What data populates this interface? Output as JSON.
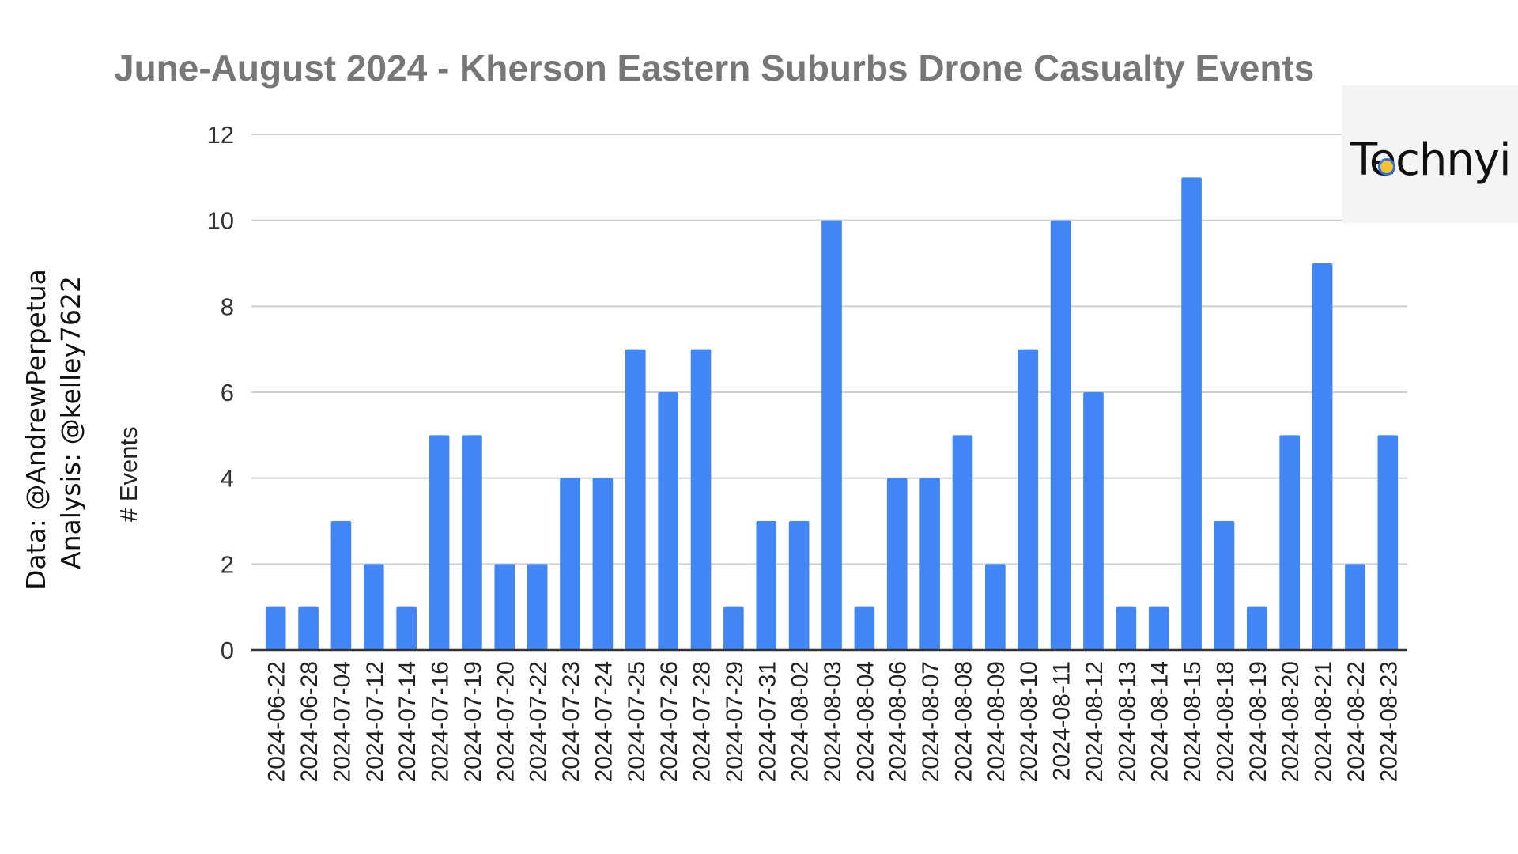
{
  "chart_data": {
    "type": "bar",
    "title": "June-August 2024 - Kherson Eastern Suburbs Drone Casualty Events",
    "xlabel": "",
    "ylabel": "# Events",
    "ylim": [
      0,
      12
    ],
    "yticks": [
      0,
      2,
      4,
      6,
      8,
      10,
      12
    ],
    "grid": true,
    "bar_color": "#4285f4",
    "categories": [
      "2024-06-22",
      "2024-06-28",
      "2024-07-04",
      "2024-07-12",
      "2024-07-14",
      "2024-07-16",
      "2024-07-19",
      "2024-07-20",
      "2024-07-22",
      "2024-07-23",
      "2024-07-24",
      "2024-07-25",
      "2024-07-26",
      "2024-07-28",
      "2024-07-29",
      "2024-07-31",
      "2024-08-02",
      "2024-08-03",
      "2024-08-04",
      "2024-08-06",
      "2024-08-07",
      "2024-08-08",
      "2024-08-09",
      "2024-08-10",
      "2024-08-11",
      "2024-08-12",
      "2024-08-13",
      "2024-08-14",
      "2024-08-15",
      "2024-08-18",
      "2024-08-19",
      "2024-08-20",
      "2024-08-21",
      "2024-08-22",
      "2024-08-23"
    ],
    "values": [
      1,
      1,
      3,
      2,
      1,
      5,
      5,
      2,
      2,
      4,
      4,
      7,
      6,
      7,
      1,
      3,
      3,
      10,
      1,
      4,
      4,
      5,
      2,
      7,
      10,
      6,
      1,
      1,
      11,
      3,
      1,
      5,
      9,
      2,
      5
    ]
  },
  "credits": {
    "data": "Data: @AndrewPerpetua",
    "analysis": "Analysis: @kelley7622"
  },
  "logo": {
    "text": "Technyi"
  }
}
